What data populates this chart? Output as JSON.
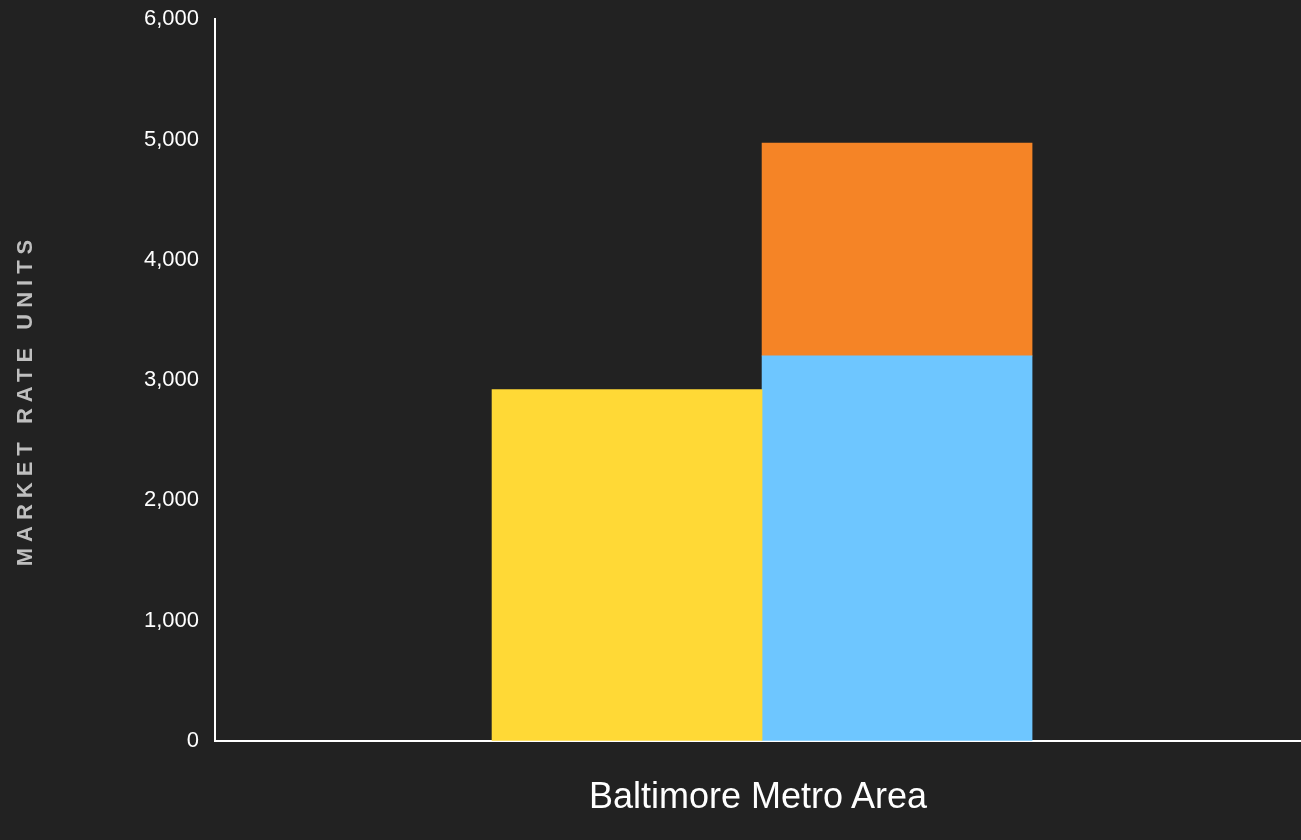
{
  "chart_data": {
    "type": "bar",
    "xlabel": "Baltimore Metro Area",
    "ylabel": "MARKET RATE UNITS",
    "categories": [
      null,
      null
    ],
    "stacked": true,
    "series": [
      {
        "color": "#ffd936",
        "values": [
          2920,
          null
        ]
      },
      {
        "color": "#6ec6ff",
        "values": [
          null,
          3200
        ]
      },
      {
        "color": "#f58426",
        "values": [
          null,
          1770
        ]
      }
    ],
    "ylim": [
      0,
      6000
    ],
    "yticks": [
      {
        "value": 0,
        "label": "0"
      },
      {
        "value": 1000,
        "label": "1,000"
      },
      {
        "value": 2000,
        "label": "2,000"
      },
      {
        "value": 3000,
        "label": "3,000"
      },
      {
        "value": 4000,
        "label": "4,000"
      },
      {
        "value": 5000,
        "label": "5,000"
      },
      {
        "value": 6000,
        "label": "6,000"
      }
    ],
    "tick_labels": "y",
    "grid": false,
    "legend": false
  }
}
